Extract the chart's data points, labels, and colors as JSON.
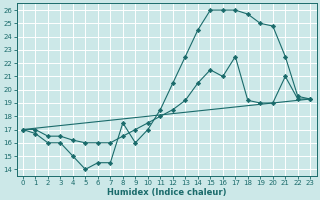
{
  "xlabel": "Humidex (Indice chaleur)",
  "bg_color": "#cce8e8",
  "grid_color": "#ffffff",
  "line_color": "#1a6b6b",
  "xlim": [
    -0.5,
    23.5
  ],
  "ylim": [
    13.5,
    26.5
  ],
  "xticks": [
    0,
    1,
    2,
    3,
    4,
    5,
    6,
    7,
    8,
    9,
    10,
    11,
    12,
    13,
    14,
    15,
    16,
    17,
    18,
    19,
    20,
    21,
    22,
    23
  ],
  "yticks": [
    14,
    15,
    16,
    17,
    18,
    19,
    20,
    21,
    22,
    23,
    24,
    25,
    26
  ],
  "line1_x": [
    0,
    1,
    2,
    3,
    4,
    5,
    6,
    7,
    8,
    9,
    10,
    11,
    12,
    13,
    14,
    15,
    16,
    17,
    18,
    19,
    20,
    21,
    22,
    23
  ],
  "line1_y": [
    17.0,
    16.7,
    16.0,
    16.0,
    15.0,
    14.0,
    14.5,
    14.5,
    17.5,
    16.0,
    17.0,
    18.5,
    20.5,
    22.5,
    24.5,
    26.0,
    26.0,
    26.0,
    25.7,
    25.0,
    24.8,
    22.5,
    19.5,
    19.3
  ],
  "line2_x": [
    0,
    1,
    2,
    3,
    4,
    5,
    6,
    7,
    8,
    9,
    10,
    11,
    12,
    13,
    14,
    15,
    16,
    17,
    18,
    19,
    20,
    21,
    22,
    23
  ],
  "line2_y": [
    17.0,
    17.0,
    16.5,
    16.5,
    16.2,
    16.0,
    16.0,
    16.0,
    16.5,
    17.0,
    17.5,
    18.0,
    18.5,
    19.2,
    20.5,
    21.5,
    21.0,
    22.5,
    19.2,
    19.0,
    19.0,
    21.0,
    19.3,
    19.3
  ],
  "line3_x": [
    0,
    23
  ],
  "line3_y": [
    17.0,
    19.3
  ]
}
